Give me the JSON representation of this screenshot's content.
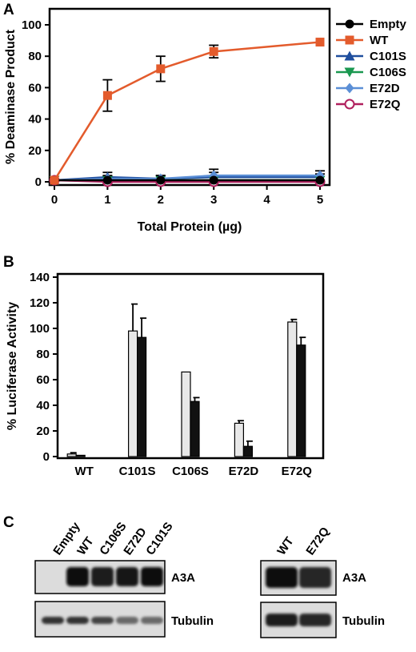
{
  "figure": {
    "panels": [
      "A",
      "B",
      "C"
    ]
  },
  "chart_data": [
    {
      "panel": "A",
      "type": "line",
      "xlabel": "Total Protein (µg)",
      "ylabel": "% Deaminase Product",
      "xlim": [
        0,
        5
      ],
      "ylim": [
        0,
        100
      ],
      "x_ticks": [
        0,
        1,
        2,
        3,
        4,
        5
      ],
      "y_ticks": [
        0,
        20,
        40,
        60,
        80,
        100
      ],
      "x": [
        0,
        1,
        2,
        3,
        5
      ],
      "grid": false,
      "legend_position": "right",
      "series": [
        {
          "name": "Empty",
          "color": "#000000",
          "marker": "circle",
          "values": [
            1,
            1,
            1,
            1,
            1
          ],
          "errors": [
            0,
            0,
            0,
            0,
            0
          ]
        },
        {
          "name": "WT",
          "color": "#e35b2c",
          "marker": "square",
          "values": [
            1,
            55,
            72,
            83,
            89
          ],
          "errors": [
            0,
            10,
            8,
            4,
            0
          ]
        },
        {
          "name": "C101S",
          "color": "#1f4e9e",
          "marker": "triangle-up",
          "values": [
            1,
            3,
            2,
            3,
            3
          ],
          "errors": [
            0,
            3,
            2,
            3,
            2
          ]
        },
        {
          "name": "C106S",
          "color": "#1a9850",
          "marker": "triangle-down",
          "values": [
            1,
            1,
            1,
            1,
            1
          ],
          "errors": [
            0,
            0,
            0,
            0,
            0
          ]
        },
        {
          "name": "E72D",
          "color": "#5b8fd6",
          "marker": "diamond",
          "values": [
            1,
            2,
            2,
            4,
            4
          ],
          "errors": [
            0,
            2,
            2,
            4,
            3
          ]
        },
        {
          "name": "E72Q",
          "color": "#b01f5d",
          "marker": "circle-open",
          "values": [
            1,
            0,
            0,
            0,
            0
          ],
          "errors": [
            0,
            0,
            0,
            0,
            0
          ]
        }
      ]
    },
    {
      "panel": "B",
      "type": "bar",
      "xlabel": "",
      "ylabel": "% Luciferase Activity",
      "ylim": [
        0,
        140
      ],
      "y_ticks": [
        0,
        20,
        40,
        60,
        80,
        100,
        120,
        140
      ],
      "categories": [
        "WT",
        "C101S",
        "C106S",
        "E72D",
        "E72Q"
      ],
      "grid": false,
      "series": [
        {
          "color": "#e8e8e8",
          "values": [
            2,
            98,
            66,
            26,
            105
          ],
          "errors": [
            1,
            21,
            0,
            2,
            2
          ]
        },
        {
          "color": "#111111",
          "values": [
            1,
            93,
            43,
            8,
            87
          ],
          "errors": [
            0,
            15,
            3,
            4,
            6
          ]
        }
      ]
    }
  ],
  "blots": {
    "panel": "C",
    "left": {
      "lanes": [
        "Empty",
        "WT",
        "C106S",
        "E72D",
        "C101S"
      ],
      "rows": [
        {
          "label": "A3A",
          "intensity": [
            0,
            1,
            0.9,
            0.95,
            1
          ]
        },
        {
          "label": "Tubulin",
          "intensity": [
            0.8,
            0.8,
            0.7,
            0.5,
            0.5
          ]
        }
      ]
    },
    "right": {
      "lanes": [
        "WT",
        "E72Q"
      ],
      "rows": [
        {
          "label": "A3A",
          "intensity": [
            1,
            0.85
          ]
        },
        {
          "label": "Tubulin",
          "intensity": [
            0.9,
            0.85
          ]
        }
      ]
    }
  }
}
